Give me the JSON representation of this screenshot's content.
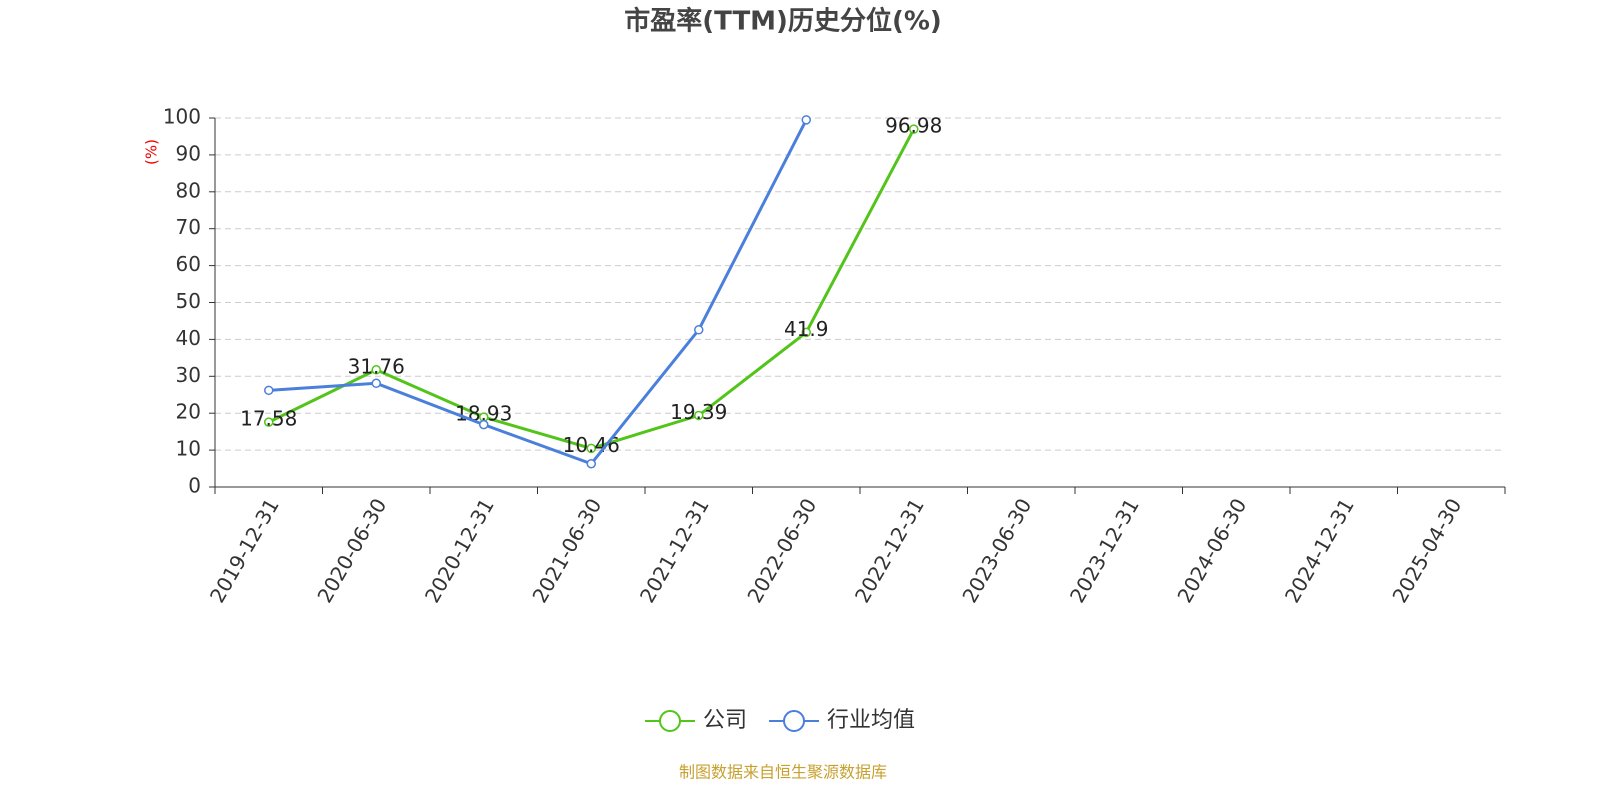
{
  "chart_data": {
    "type": "line",
    "title": "市盈率(TTM)历史分位(%)",
    "y_label": "(%)",
    "categories": [
      "2019-12-31",
      "2020-06-30",
      "2020-12-31",
      "2021-06-30",
      "2021-12-31",
      "2022-06-30",
      "2022-12-31",
      "2023-06-30",
      "2023-12-31",
      "2024-06-30",
      "2024-12-31",
      "2025-04-30"
    ],
    "series": [
      {
        "name": "公司",
        "color": "#52c41a",
        "values": [
          17.58,
          31.76,
          18.93,
          10.46,
          19.39,
          41.9,
          96.98,
          null,
          null,
          null,
          null,
          null
        ],
        "show_labels": true
      },
      {
        "name": "行业均值",
        "color": "#4a7fdb",
        "values": [
          26.2,
          28.1,
          16.9,
          6.3,
          42.6,
          99.5,
          null,
          null,
          null,
          null,
          null,
          null
        ],
        "show_labels": false
      }
    ],
    "ylim": [
      0,
      100
    ],
    "yticks": [
      0,
      10,
      20,
      30,
      40,
      50,
      60,
      70,
      80,
      90,
      100
    ],
    "grid": true,
    "legend": "bottom",
    "source": "制图数据来自恒生聚源数据库"
  }
}
